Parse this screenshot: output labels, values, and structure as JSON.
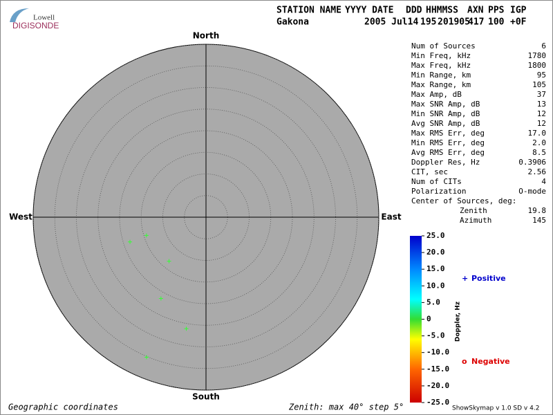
{
  "logo": {
    "top": "Lowell",
    "name": "DIGISONDE"
  },
  "header": {
    "labels": [
      "STATION NAME",
      "YYYY DATE",
      "DDD",
      "HHMMSS",
      "AXN",
      "PPS",
      "IGP"
    ],
    "values": [
      "Gakona",
      "2005 Jul14",
      "195",
      "201905",
      "417",
      "100",
      "+0F"
    ]
  },
  "stats": {
    "rows": [
      [
        "Num of Sources",
        "6"
      ],
      [
        "Min Freq, kHz",
        "1780"
      ],
      [
        "Max Freq, kHz",
        "1800"
      ],
      [
        "Min Range, km",
        "95"
      ],
      [
        "Max Range, km",
        "105"
      ],
      [
        "Max Amp, dB",
        "37"
      ],
      [
        "Max SNR Amp, dB",
        "13"
      ],
      [
        "Min SNR Amp, dB",
        "12"
      ],
      [
        "Avg SNR Amp, dB",
        "12"
      ],
      [
        "Max RMS Err, deg",
        "17.0"
      ],
      [
        "Min RMS Err, deg",
        "2.0"
      ],
      [
        "Avg RMS Err, deg",
        "8.5"
      ],
      [
        "Doppler Res, Hz",
        "0.3906"
      ],
      [
        "CIT, sec",
        "2.56"
      ],
      [
        "Num of CITs",
        "4"
      ],
      [
        "Polarization",
        "O-mode"
      ]
    ],
    "center_title": "Center of Sources, deg:",
    "center_rows": [
      [
        "Zenith",
        "19.8"
      ],
      [
        "Azimuth",
        "145"
      ]
    ]
  },
  "chart_data": {
    "type": "polar-scatter",
    "directions": {
      "north": "North",
      "south": "South",
      "east": "East",
      "west": "West"
    },
    "rlim": [
      0,
      40
    ],
    "rticks": [
      5,
      10,
      15,
      20,
      25,
      30,
      35,
      40
    ],
    "series": [
      {
        "color": "#33ff33",
        "zenith": [
          18.5,
          14.4,
          13.3,
          21.5,
          26.2,
          35.2
        ],
        "azimuth": [
          252,
          253,
          220,
          209,
          190,
          203
        ]
      }
    ],
    "colorbar": {
      "title": "Doppler, Hz",
      "lim": [
        -25,
        25
      ],
      "ticks": [
        {
          "value": 25,
          "label": "25.0"
        },
        {
          "value": 20,
          "label": "20.0"
        },
        {
          "value": 15,
          "label": "15.0"
        },
        {
          "value": 10,
          "label": "10.0"
        },
        {
          "value": 5,
          "label": "5.0"
        },
        0,
        {
          "value": -5,
          "label": "-5.0"
        },
        {
          "value": -10,
          "label": "-10.0"
        },
        {
          "value": -15,
          "label": "-15.0"
        },
        {
          "value": -20,
          "label": "-20.0"
        },
        {
          "value": -25,
          "label": "-25.0"
        }
      ]
    },
    "legend": {
      "positive_symbol": "+",
      "positive": "Positive",
      "negative_symbol": "o",
      "negative": "Negative"
    }
  },
  "footer": {
    "coords": "Geographic coordinates",
    "zenith": "Zenith: max 40°  step 5°",
    "version": "ShowSkymap v 1.0  SD v 4.2"
  }
}
